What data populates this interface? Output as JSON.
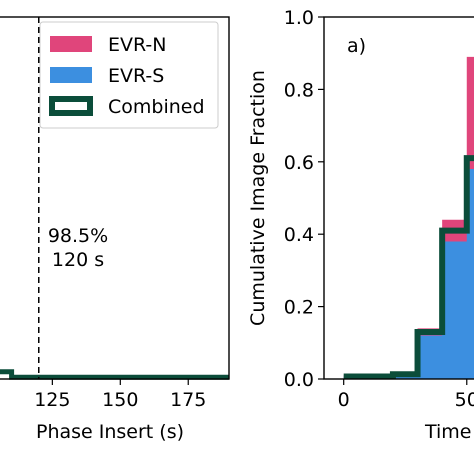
{
  "chart_data": [
    {
      "type": "histogram",
      "panel": "left",
      "xlabel": "Phase Insert (s)",
      "x_ticks": [
        125,
        150,
        175
      ],
      "xlim": [
        105,
        190
      ],
      "annotation": {
        "lines": [
          "98.5%",
          "120 s"
        ],
        "x": 120
      },
      "vline": {
        "x": 120,
        "style": "dashed"
      },
      "legend": {
        "placement": "upper-right",
        "entries": [
          {
            "label": "EVR-N",
            "color": "#e0457b"
          },
          {
            "label": "EVR-S",
            "color": "#3c8fe0"
          },
          {
            "label": "Combined",
            "color": "#0b4d3a",
            "style": "outline"
          }
        ]
      },
      "series": [
        {
          "name": "Combined",
          "step_x": [
            105,
            110,
            110,
            190
          ],
          "step_y": [
            0.02,
            0.02,
            0.005,
            0.005
          ]
        }
      ]
    },
    {
      "type": "histogram",
      "panel": "right",
      "panel_label": "a)",
      "ylabel": "Cumulative Image Fraction",
      "xlabel": "Time",
      "ylim": [
        0.0,
        1.0
      ],
      "y_ticks": [
        "0.0",
        "0.2",
        "0.4",
        "0.6",
        "0.8",
        "1.0"
      ],
      "x_ticks": [
        0,
        50
      ],
      "xlim": [
        -8,
        57
      ],
      "series": [
        {
          "name": "EVR-N",
          "color": "#e0457b",
          "bins": [
            [
              0,
              10,
              0.01
            ],
            [
              10,
              20,
              0.01
            ],
            [
              20,
              30,
              0.015
            ],
            [
              30,
              40,
              0.14
            ],
            [
              40,
              50,
              0.44
            ],
            [
              50,
              60,
              0.89
            ]
          ]
        },
        {
          "name": "EVR-S",
          "color": "#3c8fe0",
          "bins": [
            [
              0,
              10,
              0.005
            ],
            [
              10,
              20,
              0.005
            ],
            [
              20,
              30,
              0.01
            ],
            [
              30,
              40,
              0.12
            ],
            [
              40,
              50,
              0.38
            ],
            [
              50,
              60,
              0.58
            ]
          ]
        },
        {
          "name": "Combined",
          "color": "#0b4d3a",
          "bins": [
            [
              0,
              10,
              0.007
            ],
            [
              10,
              20,
              0.007
            ],
            [
              20,
              30,
              0.013
            ],
            [
              30,
              40,
              0.13
            ],
            [
              40,
              50,
              0.41
            ],
            [
              50,
              60,
              0.61
            ]
          ]
        }
      ]
    }
  ],
  "colors": {
    "evr_n": "#e0457b",
    "evr_s": "#3c8fe0",
    "combined": "#0b4d3a"
  }
}
